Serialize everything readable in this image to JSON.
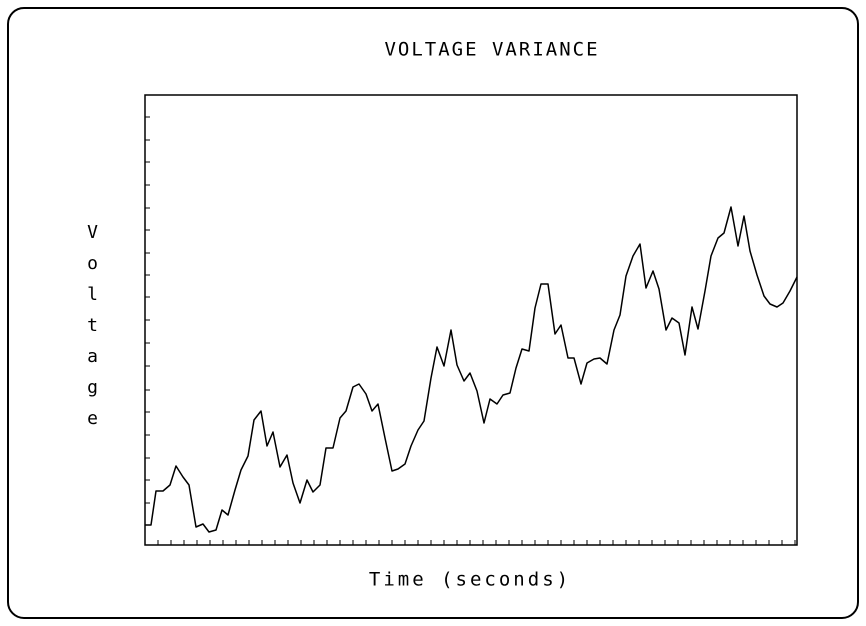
{
  "chart_data": {
    "type": "line",
    "title": "VOLTAGE VARIANCE",
    "xlabel": "Time (seconds)",
    "ylabel": "Voltage",
    "color": "#000000",
    "x": [
      0,
      6,
      11,
      18,
      25,
      31,
      38,
      44,
      51,
      58,
      64,
      71,
      77,
      83,
      90,
      96,
      103,
      109,
      116,
      122,
      128,
      135,
      142,
      148,
      155,
      162,
      168,
      175,
      181,
      188,
      195,
      201,
      208,
      214,
      221,
      227,
      233,
      240,
      247,
      253,
      260,
      266,
      273,
      279,
      286,
      292,
      299,
      306,
      312,
      319,
      325,
      332,
      339,
      345,
      352,
      358,
      365,
      371,
      377,
      384,
      390,
      396,
      403,
      410,
      416,
      423,
      429,
      436,
      442,
      449,
      455,
      462,
      469,
      475,
      481,
      488,
      495,
      501,
      508,
      514,
      521,
      527,
      534,
      540,
      547,
      553,
      560,
      566,
      573,
      579,
      586,
      593,
      599,
      605,
      612,
      619,
      625,
      632,
      638,
      645,
      652
    ],
    "values": [
      20,
      20,
      54,
      54,
      60,
      79,
      68,
      60,
      18,
      21,
      13,
      15,
      35,
      30,
      55,
      75,
      89,
      125,
      134,
      99,
      113,
      78,
      90,
      62,
      42,
      65,
      53,
      60,
      97,
      97,
      127,
      134,
      158,
      161,
      151,
      134,
      141,
      107,
      74,
      76,
      81,
      99,
      115,
      124,
      167,
      198,
      179,
      215,
      180,
      164,
      172,
      154,
      122,
      146,
      141,
      150,
      152,
      177,
      196,
      194,
      237,
      261,
      261,
      211,
      220,
      187,
      187,
      161,
      182,
      186,
      187,
      181,
      215,
      230,
      269,
      289,
      301,
      257,
      274,
      256,
      215,
      227,
      222,
      190,
      238,
      216,
      254,
      289,
      307,
      312,
      338,
      299,
      329,
      294,
      270,
      249,
      241,
      238,
      242,
      254,
      268
    ],
    "xlim": [
      0,
      652
    ],
    "ylim": [
      0,
      450
    ],
    "xticks": [
      13,
      26,
      39,
      52,
      65,
      78,
      91,
      104,
      117,
      130,
      143,
      156,
      169,
      182,
      195,
      208,
      221,
      234,
      247,
      260,
      273,
      286,
      299,
      312,
      325,
      338,
      351,
      364,
      377,
      390,
      403,
      416,
      429,
      442,
      455,
      468,
      481,
      494,
      507,
      520,
      533,
      546,
      559,
      572,
      585,
      598,
      611,
      624,
      637,
      650
    ],
    "yticks": [
      20,
      42,
      65,
      87,
      110,
      133,
      155,
      179,
      202,
      225,
      248,
      270,
      292,
      315,
      337,
      360,
      383,
      405,
      428
    ]
  }
}
